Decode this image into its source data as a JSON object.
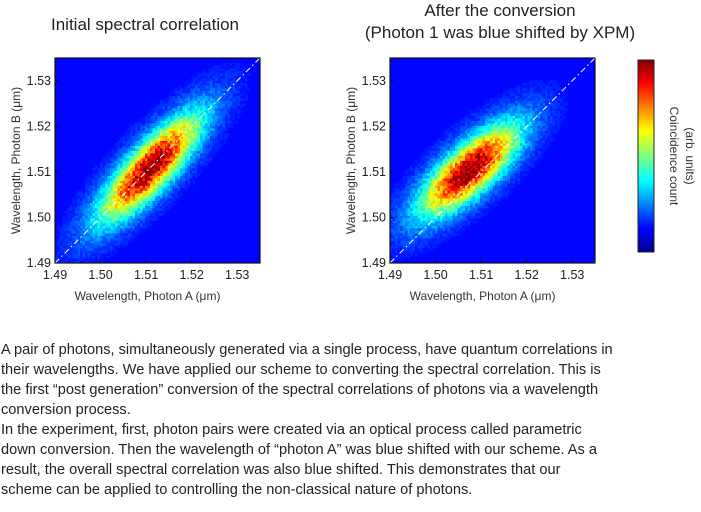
{
  "chart_data": [
    {
      "type": "heatmap",
      "title": "Initial spectral correlation",
      "xlabel": "Wavelength, Photon A (μm)",
      "ylabel": "Wavelength, Photon B (μm)",
      "xlim": [
        1.49,
        1.535
      ],
      "ylim": [
        1.49,
        1.535
      ],
      "xticks": [
        1.49,
        1.5,
        1.51,
        1.52,
        1.53
      ],
      "yticks": [
        1.49,
        1.5,
        1.51,
        1.52,
        1.53
      ],
      "xtick_labels": [
        "1.49",
        "1.50",
        "1.51",
        "1.52",
        "1.53"
      ],
      "ytick_labels": [
        "1.49",
        "1.50",
        "1.51",
        "1.52",
        "1.53"
      ],
      "distribution": {
        "center": [
          1.511,
          1.511
        ],
        "major_axis_angle_deg": 47,
        "sigma_major": 0.0105,
        "sigma_minor": 0.0032
      },
      "reference_line": "y = x (dash-dot)",
      "colormap": "jet"
    },
    {
      "type": "heatmap",
      "title_lines": [
        "After the conversion",
        "(Photon 1 was blue shifted by XPM)"
      ],
      "xlabel": "Wavelength, Photon A (μm)",
      "ylabel": "Wavelength, Photon B (μm)",
      "xlim": [
        1.49,
        1.535
      ],
      "ylim": [
        1.49,
        1.535
      ],
      "xticks": [
        1.49,
        1.5,
        1.51,
        1.52,
        1.53
      ],
      "yticks": [
        1.49,
        1.5,
        1.51,
        1.52,
        1.53
      ],
      "xtick_labels": [
        "1.49",
        "1.50",
        "1.51",
        "1.52",
        "1.53"
      ],
      "ytick_labels": [
        "1.49",
        "1.50",
        "1.51",
        "1.52",
        "1.53"
      ],
      "distribution": {
        "center": [
          1.5075,
          1.5105
        ],
        "major_axis_angle_deg": 42,
        "sigma_major": 0.0095,
        "sigma_minor": 0.0034
      },
      "reference_line": "y = x (dash-dot)",
      "colormap": "jet"
    }
  ],
  "colorbar": {
    "label_line1": "Coincidence count",
    "label_line2": "(arb. units)",
    "colormap": "jet"
  },
  "description": {
    "p1_lines": [
      "A pair of photons, simultaneously generated via a single process, have quantum correlations in",
      "their wavelengths. We have applied our scheme to converting the spectral correlation. This is",
      "the first “post generation” conversion of the spectral correlations of photons via a wavelength",
      "conversion process."
    ],
    "p2_lines": [
      "In the experiment, first, photon pairs were created via an optical process called parametric",
      "down conversion. Then the wavelength of “photon A” was blue shifted with our scheme. As a",
      "result, the overall spectral correlation was also blue shifted. This demonstrates that our",
      "scheme can be applied to controlling the non-classical nature of photons."
    ]
  },
  "colors": {
    "background_field": "#0d2a6e",
    "axis": "#111111",
    "refline": "#ffffff"
  }
}
